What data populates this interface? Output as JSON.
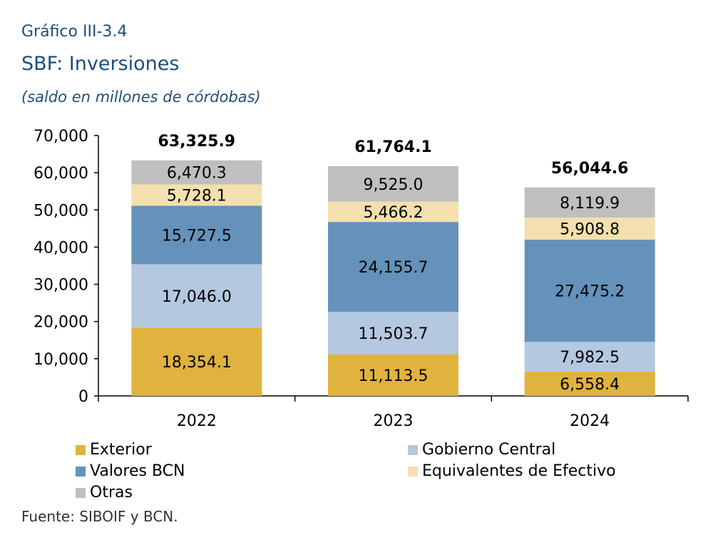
{
  "header": {
    "pretitle": "Gráfico III-3.4",
    "title": "SBF: Inversiones",
    "subtitle": "(saldo en millones de córdobas)"
  },
  "source": "Fuente: SIBOIF y BCN.",
  "colors": {
    "Exterior": "#e0b33f",
    "Gobierno Central": "#b4c8df",
    "Valores BCN": "#6592ba",
    "Equivalentes de Efectivo": "#f3e0ae",
    "Otras": "#bfbfbf"
  },
  "chart_data": {
    "type": "bar",
    "stacked": true,
    "categories": [
      "2022",
      "2023",
      "2024"
    ],
    "series": [
      {
        "name": "Exterior",
        "values": [
          18354.1,
          11113.5,
          6558.4
        ],
        "labels": [
          "18,354.1",
          "11,113.5",
          "6,558.4"
        ]
      },
      {
        "name": "Gobierno Central",
        "values": [
          17046.0,
          11503.7,
          7982.5
        ],
        "labels": [
          "17,046.0",
          "11,503.7",
          "7,982.5"
        ]
      },
      {
        "name": "Valores BCN",
        "values": [
          15727.5,
          24155.7,
          27475.2
        ],
        "labels": [
          "15,727.5",
          "24,155.7",
          "27,475.2"
        ]
      },
      {
        "name": "Equivalentes de Efectivo",
        "values": [
          5728.1,
          5466.2,
          5908.8
        ],
        "labels": [
          "5,728.1",
          "5,466.2",
          "5,908.8"
        ]
      },
      {
        "name": "Otras",
        "values": [
          6470.3,
          9525.0,
          8119.9
        ],
        "labels": [
          "6,470.3",
          "9,525.0",
          "8,119.9"
        ]
      }
    ],
    "totals": [
      63325.9,
      61764.1,
      56044.6
    ],
    "total_labels": [
      "63,325.9",
      "61,764.1",
      "56,044.6"
    ],
    "ylim": [
      0,
      70000
    ],
    "yticks": [
      0,
      10000,
      20000,
      30000,
      40000,
      50000,
      60000,
      70000
    ],
    "ytick_labels": [
      "0",
      "10,000",
      "20,000",
      "30,000",
      "40,000",
      "50,000",
      "60,000",
      "70,000"
    ],
    "grid": false,
    "legend_position": "bottom"
  }
}
